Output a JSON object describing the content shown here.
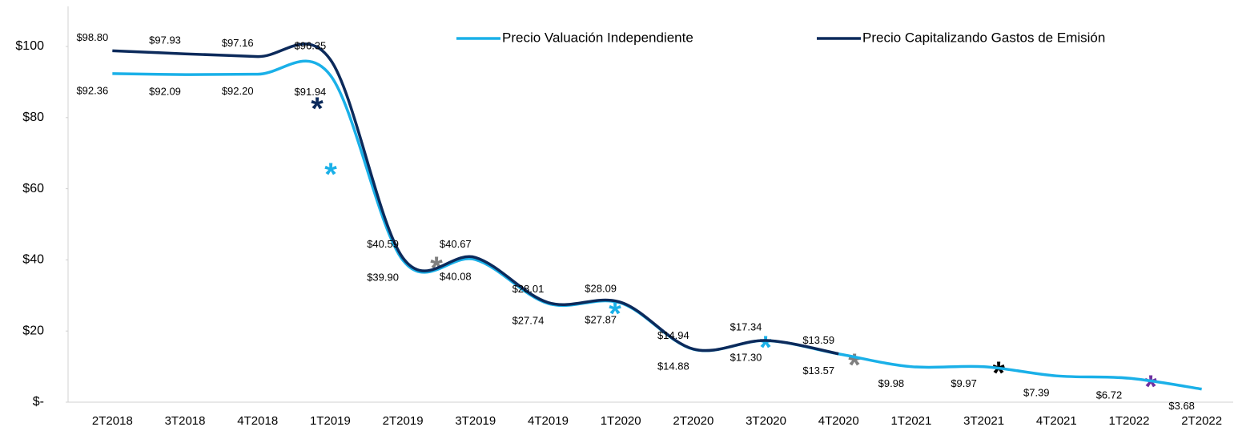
{
  "chart_data": {
    "type": "line",
    "categories": [
      "2T2018",
      "3T2018",
      "4T2018",
      "1T2019",
      "2T2019",
      "3T2019",
      "4T2019",
      "1T2020",
      "2T2020",
      "3T2020",
      "4T2020",
      "1T2021",
      "3T2021",
      "4T2021",
      "1T2022",
      "2T2022"
    ],
    "series": [
      {
        "name": "Precio Valuación Independiente",
        "color": "#1ab0e8",
        "values": [
          92.36,
          92.09,
          92.2,
          91.94,
          39.9,
          40.08,
          27.74,
          27.87,
          14.88,
          17.3,
          13.57,
          9.98,
          9.97,
          7.39,
          6.72,
          3.68
        ],
        "value_labels": [
          "$92.36",
          "$92.09",
          "$92.20",
          "$91.94",
          "$39.90",
          "$40.08",
          "$27.74",
          "$27.87",
          "$14.88",
          "$17.30",
          "$13.57",
          "$9.98",
          "$9.97",
          "$7.39",
          "$6.72",
          "$3.68"
        ]
      },
      {
        "name": "Precio Capitalizando Gastos de Emisión",
        "color": "#0c2a5b",
        "values": [
          98.8,
          97.93,
          97.16,
          96.35,
          40.59,
          40.67,
          28.01,
          28.09,
          14.94,
          17.34,
          13.59,
          null,
          null,
          null,
          null,
          null
        ],
        "value_labels": [
          "$98.80",
          "$97.93",
          "$97.16",
          "$96.35",
          "$40.59",
          "$40.67",
          "$28.01",
          "$28.09",
          "$14.94",
          "$17.34",
          "$13.59",
          null,
          null,
          null,
          null,
          null
        ]
      }
    ],
    "ylim": [
      0,
      110
    ],
    "yticks": [
      {
        "value": 0,
        "label": "$-"
      },
      {
        "value": 20,
        "label": "$20"
      },
      {
        "value": 40,
        "label": "$40"
      },
      {
        "value": 60,
        "label": "$60"
      },
      {
        "value": 80,
        "label": "$80"
      },
      {
        "value": 100,
        "label": "$100"
      }
    ],
    "legend": "top-right"
  }
}
